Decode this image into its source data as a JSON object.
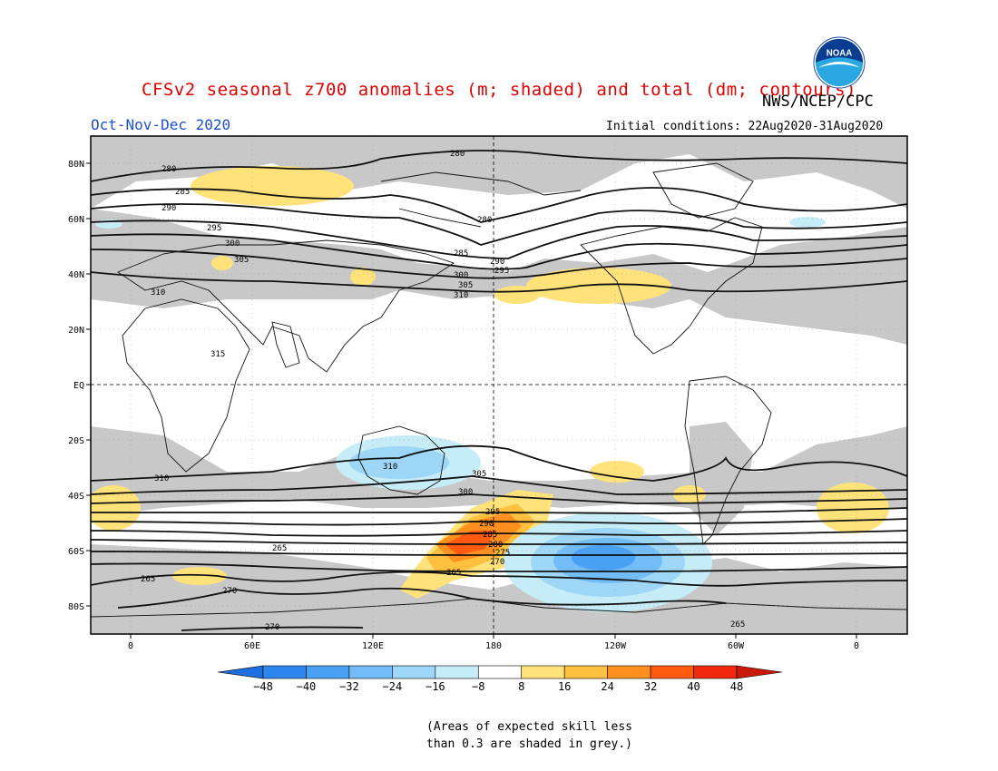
{
  "title": "CFSv2 seasonal z700 anomalies (m; shaded) and total (dm; contours)",
  "season": "Oct-Nov-Dec 2020",
  "agency": "NWS/NCEP/CPC",
  "initial_conditions": "Initial conditions: 22Aug2020-31Aug2020",
  "logo_text": "NOAA",
  "lat_labels": [
    "80N",
    "60N",
    "40N",
    "20N",
    "EQ",
    "20S",
    "40S",
    "60S",
    "80S"
  ],
  "lon_labels": [
    "0",
    "60E",
    "120E",
    "180",
    "120W",
    "60W",
    "0"
  ],
  "colorbar": {
    "ticks": [
      "-48",
      "-40",
      "-32",
      "-24",
      "-16",
      "-8",
      "8",
      "16",
      "24",
      "32",
      "40",
      "48"
    ],
    "colors": [
      "#1e6fe0",
      "#2f86ef",
      "#4aa0f3",
      "#72bcf7",
      "#9ed6f8",
      "#c6ecf8",
      "#ffffff",
      "#ffe27a",
      "#ffc040",
      "#ff9020",
      "#ff5a10",
      "#f02810",
      "#c81808"
    ],
    "units": "m"
  },
  "contours": {
    "northern": [
      {
        "label": "280",
        "lon_label": 30
      },
      {
        "label": "285",
        "lon_label": 28
      },
      {
        "label": "290",
        "lon_label": 22
      },
      {
        "label": "295",
        "lon_label": 45
      },
      {
        "label": "300",
        "lon_label": 55
      },
      {
        "label": "305",
        "lon_label": 65
      },
      {
        "label": "310",
        "lon_label": 35
      }
    ],
    "southern": [
      {
        "label": "310"
      },
      {
        "label": "305"
      },
      {
        "label": "300"
      },
      {
        "label": "295"
      },
      {
        "label": "290"
      },
      {
        "label": "285"
      },
      {
        "label": "280"
      },
      {
        "label": "275"
      },
      {
        "label": "270"
      },
      {
        "label": "265"
      }
    ],
    "extra_labels": [
      "315",
      "280",
      "280",
      "285",
      "290",
      "295",
      "300",
      "305",
      "310",
      "310",
      "265",
      "270",
      "270",
      "265",
      "265"
    ]
  },
  "note": {
    "line1": "(Areas of expected skill less",
    "line2": "than 0.3 are shaded in grey.)"
  }
}
